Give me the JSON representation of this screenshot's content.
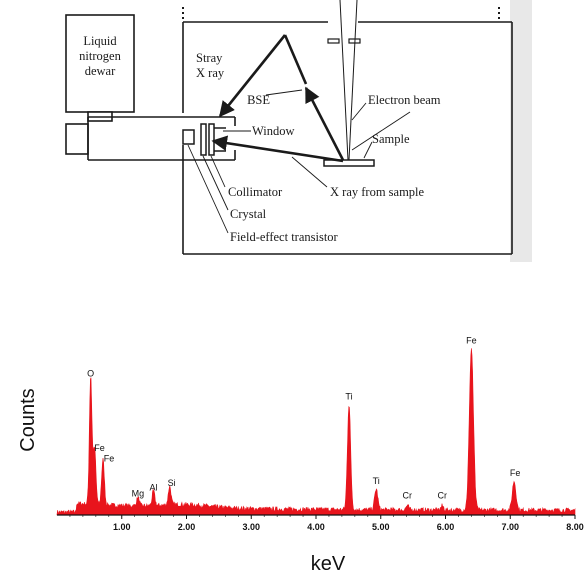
{
  "diagram": {
    "labels": {
      "dewar": [
        "Liquid",
        "nitrogen",
        "dewar"
      ],
      "stray": [
        "Stray",
        "X ray"
      ],
      "bse": "BSE",
      "electron_beam": "Electron beam",
      "window": "Window",
      "sample": "Sample",
      "collimator": "Collimator",
      "xray_from_sample": "X ray from sample",
      "crystal": "Crystal",
      "fet": "Field-effect transistor"
    }
  },
  "chart_data": {
    "type": "line",
    "title": "",
    "xlabel": "keV",
    "ylabel": "Counts",
    "xlim": [
      0,
      8.0
    ],
    "ylim": [
      0,
      100
    ],
    "xticks": [
      "1.00",
      "2.00",
      "3.00",
      "4.00",
      "5.00",
      "6.00",
      "7.00",
      "8.00"
    ],
    "xtick_values": [
      1,
      2,
      3,
      4,
      5,
      6,
      7,
      8
    ],
    "fill_color": "#e8141c",
    "peaks": [
      {
        "label": "O",
        "x": 0.52,
        "y": 62
      },
      {
        "label": "Fe",
        "x": 0.58,
        "y": 27
      },
      {
        "label": "Fe",
        "x": 0.71,
        "y": 22
      },
      {
        "label": "Mg",
        "x": 1.25,
        "y": 4
      },
      {
        "label": "Al",
        "x": 1.49,
        "y": 7
      },
      {
        "label": "Si",
        "x": 1.74,
        "y": 9
      },
      {
        "label": "Ti",
        "x": 4.51,
        "y": 51
      },
      {
        "label": "Ti",
        "x": 4.93,
        "y": 10
      },
      {
        "label": "Cr",
        "x": 5.41,
        "y": 2
      },
      {
        "label": "Cr",
        "x": 5.95,
        "y": 2
      },
      {
        "label": "Fe",
        "x": 6.4,
        "y": 78
      },
      {
        "label": "Fe",
        "x": 7.06,
        "y": 14
      }
    ]
  }
}
